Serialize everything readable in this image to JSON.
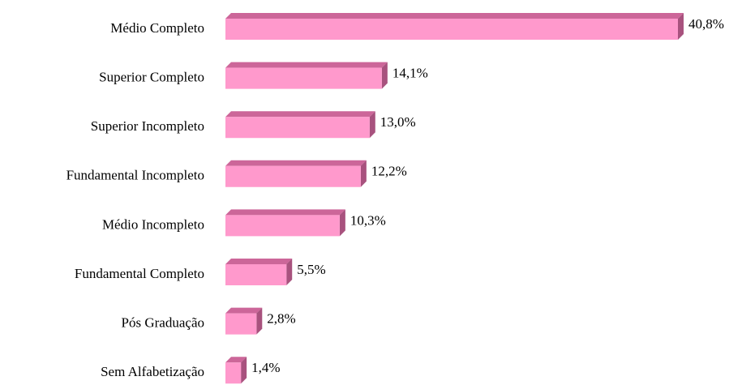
{
  "chart_data": {
    "type": "bar",
    "orientation": "horizontal",
    "categories": [
      "Médio Completo",
      "Superior Completo",
      "Superior Incompleto",
      "Fundamental Incompleto",
      "Médio Incompleto",
      "Fundamental Completo",
      "Pós Graduação",
      "Sem Alfabetização"
    ],
    "values": [
      40.8,
      14.1,
      13.0,
      12.2,
      10.3,
      5.5,
      2.8,
      1.4
    ],
    "value_labels": [
      "40,8%",
      "14,1%",
      "13,0%",
      "12,2%",
      "10,3%",
      "5,5%",
      "2,8%",
      "1,4%"
    ],
    "color": "#ff99cc"
  }
}
